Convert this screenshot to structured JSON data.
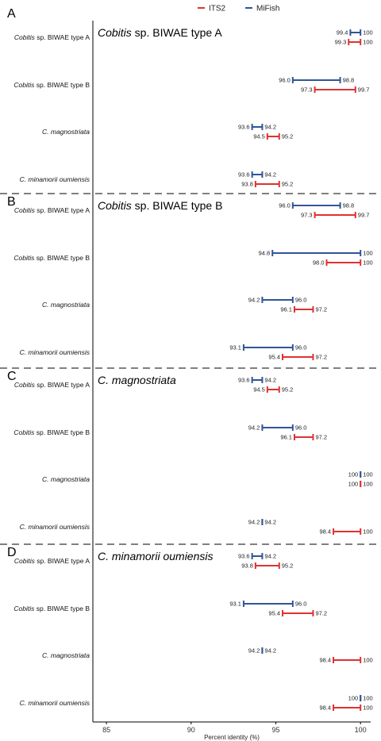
{
  "chart_data": {
    "type": "range",
    "xlabel": "Percent identity (%)",
    "xlim": [
      84.2,
      100.6
    ],
    "xticks": [
      85,
      90,
      95,
      100
    ],
    "legend": [
      {
        "name": "ITS2",
        "color": "#e03131"
      },
      {
        "name": "MiFish",
        "color": "#2f5597"
      }
    ],
    "categories": [
      {
        "first": "Cobitis",
        "rest": " sp. BIWAE type A"
      },
      {
        "first": "Cobitis",
        "rest": " sp. BIWAE type B"
      },
      {
        "first": "C. magnostriata",
        "rest": ""
      },
      {
        "first": "C. minamorii oumiensis",
        "rest": ""
      }
    ],
    "panels": [
      {
        "letter": "A",
        "title": "Cobitis",
        "title_rest": " sp. BIWAE type A",
        "rows": [
          {
            "mifish": {
              "min": 99.4,
              "max": 100,
              "min_label": "99.4",
              "max_label": "100"
            },
            "its2": {
              "min": 99.3,
              "max": 100,
              "min_label": "99.3",
              "max_label": "100"
            }
          },
          {
            "mifish": {
              "min": 96.0,
              "max": 98.8,
              "min_label": "96.0",
              "max_label": "98.8"
            },
            "its2": {
              "min": 97.3,
              "max": 99.7,
              "min_label": "97.3",
              "max_label": "99.7"
            }
          },
          {
            "mifish": {
              "min": 93.6,
              "max": 94.2,
              "min_label": "93.6",
              "max_label": "94.2"
            },
            "its2": {
              "min": 94.5,
              "max": 95.2,
              "min_label": "94.5",
              "max_label": "95.2"
            }
          },
          {
            "mifish": {
              "min": 93.6,
              "max": 94.2,
              "min_label": "93.6",
              "max_label": "94.2"
            },
            "its2": {
              "min": 93.8,
              "max": 95.2,
              "min_label": "93.8",
              "max_label": "95.2"
            }
          }
        ]
      },
      {
        "letter": "B",
        "title": "Cobitis",
        "title_rest": " sp. BIWAE type B",
        "rows": [
          {
            "mifish": {
              "min": 96.0,
              "max": 98.8,
              "min_label": "96.0",
              "max_label": "98.8"
            },
            "its2": {
              "min": 97.3,
              "max": 99.7,
              "min_label": "97.3",
              "max_label": "99.7"
            }
          },
          {
            "mifish": {
              "min": 94.8,
              "max": 100,
              "min_label": "94.8",
              "max_label": "100"
            },
            "its2": {
              "min": 98.0,
              "max": 100,
              "min_label": "98.0",
              "max_label": "100"
            }
          },
          {
            "mifish": {
              "min": 94.2,
              "max": 96.0,
              "min_label": "94.2",
              "max_label": "96.0"
            },
            "its2": {
              "min": 96.1,
              "max": 97.2,
              "min_label": "96.1",
              "max_label": "97.2"
            }
          },
          {
            "mifish": {
              "min": 93.1,
              "max": 96.0,
              "min_label": "93.1",
              "max_label": "96.0"
            },
            "its2": {
              "min": 95.4,
              "max": 97.2,
              "min_label": "95.4",
              "max_label": "97.2"
            }
          }
        ]
      },
      {
        "letter": "C",
        "title": "C. magnostriata",
        "title_rest": "",
        "rows": [
          {
            "mifish": {
              "min": 93.6,
              "max": 94.2,
              "min_label": "93.6",
              "max_label": "94.2"
            },
            "its2": {
              "min": 94.5,
              "max": 95.2,
              "min_label": "94.5",
              "max_label": "95.2"
            }
          },
          {
            "mifish": {
              "min": 94.2,
              "max": 96.0,
              "min_label": "94.2",
              "max_label": "96.0"
            },
            "its2": {
              "min": 96.1,
              "max": 97.2,
              "min_label": "96.1",
              "max_label": "97.2"
            }
          },
          {
            "mifish": {
              "min": 100,
              "max": 100,
              "min_label": "100",
              "max_label": "100"
            },
            "its2": {
              "min": 100,
              "max": 100,
              "min_label": "100",
              "max_label": "100"
            }
          },
          {
            "mifish": {
              "min": 94.2,
              "max": 94.2,
              "min_label": "94.2",
              "max_label": "94.2"
            },
            "its2": {
              "min": 98.4,
              "max": 100,
              "min_label": "98.4",
              "max_label": "100"
            }
          }
        ]
      },
      {
        "letter": "D",
        "title": "C. minamorii oumiensis",
        "title_rest": "",
        "rows": [
          {
            "mifish": {
              "min": 93.6,
              "max": 94.2,
              "min_label": "93.6",
              "max_label": "94.2"
            },
            "its2": {
              "min": 93.8,
              "max": 95.2,
              "min_label": "93.8",
              "max_label": "95.2"
            }
          },
          {
            "mifish": {
              "min": 93.1,
              "max": 96.0,
              "min_label": "93.1",
              "max_label": "96.0"
            },
            "its2": {
              "min": 95.4,
              "max": 97.2,
              "min_label": "95.4",
              "max_label": "97.2"
            }
          },
          {
            "mifish": {
              "min": 94.2,
              "max": 94.2,
              "min_label": "94.2",
              "max_label": "94.2"
            },
            "its2": {
              "min": 98.4,
              "max": 100,
              "min_label": "98.4",
              "max_label": "100"
            }
          },
          {
            "mifish": {
              "min": 100,
              "max": 100,
              "min_label": "100",
              "max_label": "100"
            },
            "its2": {
              "min": 98.4,
              "max": 100,
              "min_label": "98.4",
              "max_label": "100"
            }
          }
        ]
      }
    ]
  }
}
